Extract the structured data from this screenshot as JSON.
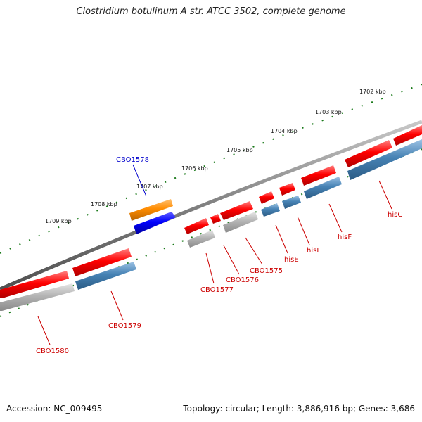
{
  "title": "Clostridium botulinum A str. ATCC 3502, complete genome",
  "footer": {
    "accession": "Accession: NC_009495",
    "topology": "Topology: circular; Length: 3,886,916 bp; Genes: 3,686"
  },
  "scale_labels": [
    "1709 kbp",
    "1708 kbp",
    "1707 kbp",
    "1706 kbp",
    "1705 kbp",
    "1704 kbp",
    "1703 kbp",
    "1702 kbp"
  ],
  "gene_labels": [
    "CBO1578",
    "CBO1579",
    "CBO1580",
    "CBO1577",
    "CBO1576",
    "CBO1575",
    "hisE",
    "hisI",
    "hisF",
    "hisC"
  ],
  "colors": {
    "gene_red": "#ff0000",
    "cds_blue": "#4682b4",
    "cds_gray": "#b0b0b0",
    "orange": "#ff8c00",
    "blue": "#0000ff",
    "backbone": "#777777",
    "ticks": "#1a7a1a",
    "label_red": "#cc0000",
    "label_blue": "#0000cc"
  }
}
